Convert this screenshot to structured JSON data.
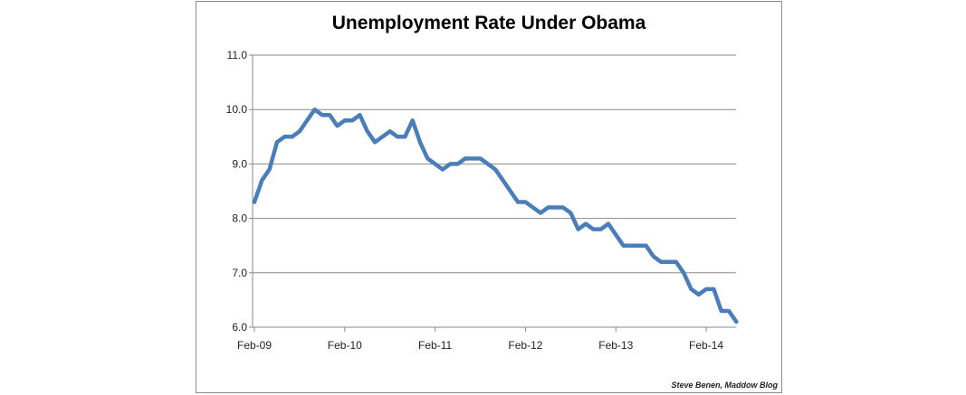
{
  "chart_data": {
    "type": "line",
    "title": "Unemployment Rate Under Obama",
    "xlabel": "",
    "ylabel": "",
    "ylim": [
      6.0,
      11.0
    ],
    "y_ticks": [
      "6.0",
      "7.0",
      "8.0",
      "9.0",
      "10.0",
      "11.0"
    ],
    "x_ticks": [
      "Feb-09",
      "Feb-10",
      "Feb-11",
      "Feb-12",
      "Feb-13",
      "Feb-14"
    ],
    "x_start": "Feb-09",
    "x_end": "May-14",
    "grid": true,
    "line_color": "#4a7ebb",
    "series": [
      {
        "values": [
          8.3,
          8.7,
          8.9,
          9.4,
          9.5,
          9.5,
          9.6,
          9.8,
          10.0,
          9.9,
          9.9,
          9.7,
          9.8,
          9.8,
          9.9,
          9.6,
          9.4,
          9.5,
          9.6,
          9.5,
          9.5,
          9.8,
          9.4,
          9.1,
          9.0,
          8.9,
          9.0,
          9.0,
          9.1,
          9.1,
          9.1,
          9.0,
          8.9,
          8.7,
          8.5,
          8.3,
          8.3,
          8.2,
          8.1,
          8.2,
          8.2,
          8.2,
          8.1,
          7.8,
          7.9,
          7.8,
          7.8,
          7.9,
          7.7,
          7.5,
          7.5,
          7.5,
          7.5,
          7.3,
          7.2,
          7.2,
          7.2,
          7.0,
          6.7,
          6.6,
          6.7,
          6.7,
          6.3,
          6.3,
          6.1
        ]
      }
    ]
  },
  "credit": "Steve Benen, Maddow Blog"
}
